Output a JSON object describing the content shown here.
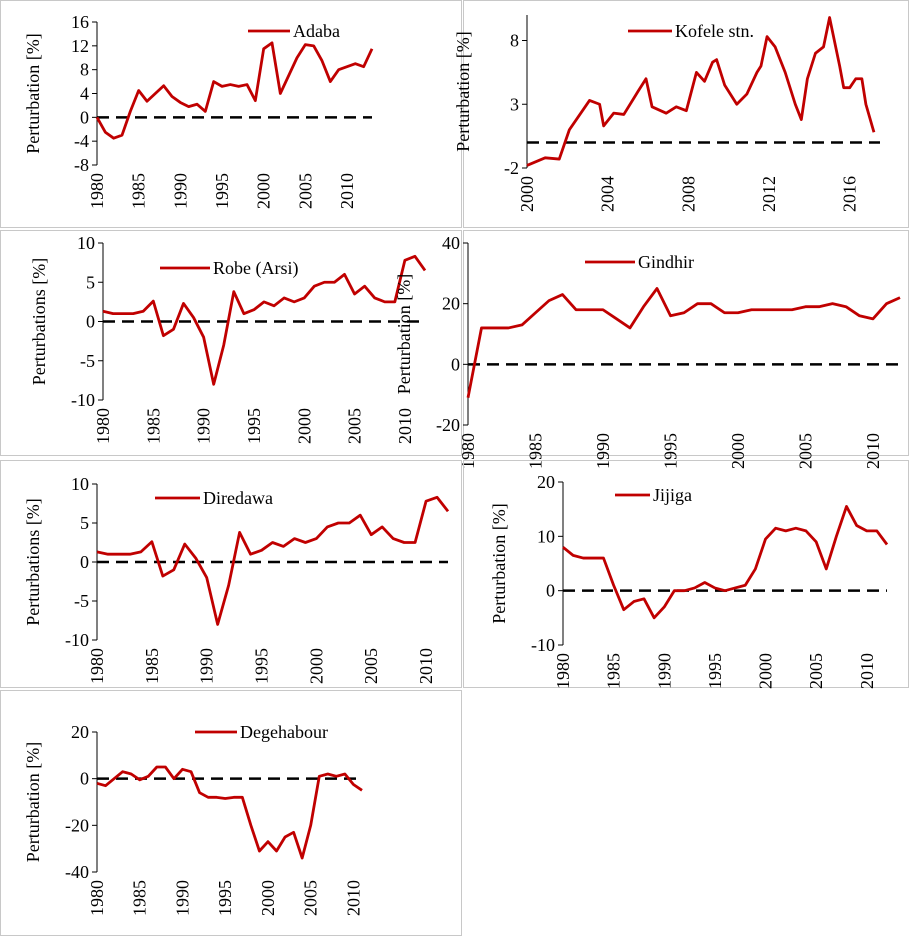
{
  "chart_data": [
    {
      "type": "line",
      "ylabel": "Perturbation [%]",
      "x": [
        1980,
        1981,
        1982,
        1983,
        1984,
        1985,
        1986,
        1987,
        1988,
        1989,
        1990,
        1991,
        1992,
        1993,
        1994,
        1995,
        1996,
        1997,
        1998,
        1999,
        2000,
        2001,
        2002,
        2003,
        2004,
        2005,
        2006,
        2007,
        2008,
        2009,
        2010,
        2011,
        2012,
        2013
      ],
      "series": [
        {
          "name": "Adaba",
          "color": "#c00000",
          "values": [
            0,
            -2.5,
            -3.5,
            -3,
            1,
            4.5,
            2.7,
            4,
            5.3,
            3.5,
            2.5,
            1.8,
            2.2,
            1,
            6,
            5.2,
            5.5,
            5.2,
            5.5,
            2.8,
            11.5,
            12.5,
            4,
            7,
            10,
            12.2,
            12,
            9.5,
            6,
            8,
            8.5,
            9,
            8.5,
            11.5
          ]
        }
      ],
      "xlim": [
        1980,
        2013
      ],
      "ylim": [
        -8,
        16
      ],
      "xticks": [
        1980,
        1985,
        1990,
        1995,
        2000,
        2005,
        2010
      ],
      "yticks": [
        -8,
        -4,
        0,
        4,
        8,
        12,
        16
      ],
      "zero_line": true
    },
    {
      "type": "line",
      "ylabel": "Perturbation [%]",
      "x": [
        2000,
        2000.9,
        2001.6,
        2002.1,
        2003.1,
        2003.6,
        2003.8,
        2004.3,
        2004.8,
        2005.5,
        2005.9,
        2006.2,
        2006.9,
        2007.4,
        2007.9,
        2008.4,
        2008.8,
        2009.2,
        2009.4,
        2009.8,
        2010.4,
        2010.9,
        2011.4,
        2011.6,
        2011.9,
        2012.3,
        2012.8,
        2013.3,
        2013.6,
        2013.9,
        2014.3,
        2014.7,
        2015,
        2015.5,
        2015.7,
        2016,
        2016.3,
        2016.6,
        2016.8,
        2017.2
      ],
      "series": [
        {
          "name": "Kofele stn.",
          "color": "#c00000",
          "values": [
            -1.8,
            -1.2,
            -1.3,
            1,
            3.3,
            3,
            1.3,
            2.3,
            2.2,
            4,
            5,
            2.8,
            2.3,
            2.8,
            2.5,
            5.5,
            4.8,
            6.3,
            6.5,
            4.5,
            3,
            3.8,
            5.5,
            6,
            8.3,
            7.5,
            5.5,
            3,
            1.8,
            5,
            7,
            7.5,
            9.8,
            6,
            4.3,
            4.3,
            5,
            5,
            3,
            0.8
          ]
        }
      ],
      "xlim": [
        2000,
        2017.5
      ],
      "ylim": [
        -2,
        10
      ],
      "xticks": [
        2000,
        2004,
        2008,
        2012,
        2016
      ],
      "yticks": [
        -2,
        3,
        8
      ],
      "zero_line": true
    },
    {
      "type": "line",
      "ylabel": "Perturbations [%]",
      "x": [
        1980,
        1981,
        1982,
        1983,
        1984,
        1985,
        1986,
        1987,
        1988,
        1989,
        1990,
        1991,
        1992,
        1993,
        1994,
        1995,
        1996,
        1997,
        1998,
        1999,
        2000,
        2001,
        2002,
        2003,
        2004,
        2005,
        2006,
        2007,
        2008,
        2009,
        2010,
        2011,
        2012
      ],
      "series": [
        {
          "name": "Robe (Arsi)",
          "color": "#c00000",
          "values": [
            1.3,
            1,
            1,
            1,
            1.3,
            2.6,
            -1.8,
            -1,
            2.3,
            0.5,
            -2,
            -8,
            -3,
            3.8,
            1,
            1.5,
            2.5,
            2,
            3,
            2.5,
            3,
            4.5,
            5,
            5,
            6,
            3.5,
            4.5,
            3,
            2.5,
            2.5,
            7.8,
            8.3,
            6.5
          ]
        }
      ],
      "xlim": [
        1980,
        2012
      ],
      "ylim": [
        -10,
        10
      ],
      "xticks": [
        1980,
        1985,
        1990,
        1995,
        2000,
        2005,
        2010
      ],
      "yticks": [
        -10,
        -5,
        0,
        5,
        10
      ],
      "zero_line": true
    },
    {
      "type": "line",
      "ylabel": "Perturbation [%]",
      "x": [
        1980,
        1981,
        1982,
        1983,
        1984,
        1985,
        1986,
        1987,
        1988,
        1989,
        1990,
        1991,
        1992,
        1993,
        1994,
        1995,
        1996,
        1997,
        1998,
        1999,
        2000,
        2001,
        2002,
        2003,
        2004,
        2005,
        2006,
        2007,
        2008,
        2009,
        2010,
        2011,
        2012
      ],
      "series": [
        {
          "name": "Gindhir",
          "color": "#c00000",
          "values": [
            -11,
            12,
            12,
            12,
            13,
            17,
            21,
            23,
            18,
            18,
            18,
            15,
            12,
            19,
            25,
            16,
            17,
            20,
            20,
            17,
            17,
            18,
            18,
            18,
            18,
            19,
            19,
            20,
            19,
            16,
            15,
            20,
            22
          ]
        }
      ],
      "xlim": [
        1980,
        2012
      ],
      "ylim": [
        -20,
        40
      ],
      "xticks": [
        1980,
        1985,
        1990,
        1995,
        2000,
        2005,
        2010
      ],
      "yticks": [
        -20,
        0,
        20,
        40
      ],
      "zero_line": true
    },
    {
      "type": "line",
      "ylabel": "Perturbations [%]",
      "x": [
        1980,
        1981,
        1982,
        1983,
        1984,
        1985,
        1986,
        1987,
        1988,
        1989,
        1990,
        1991,
        1992,
        1993,
        1994,
        1995,
        1996,
        1997,
        1998,
        1999,
        2000,
        2001,
        2002,
        2003,
        2004,
        2005,
        2006,
        2007,
        2008,
        2009,
        2010,
        2011,
        2012
      ],
      "series": [
        {
          "name": "Diredawa",
          "color": "#c00000",
          "values": [
            1.3,
            1,
            1,
            1,
            1.3,
            2.6,
            -1.8,
            -1,
            2.3,
            0.5,
            -2,
            -8,
            -3,
            3.8,
            1,
            1.5,
            2.5,
            2,
            3,
            2.5,
            3,
            4.5,
            5,
            5,
            6,
            3.5,
            4.5,
            3,
            2.5,
            2.5,
            7.8,
            8.3,
            6.5
          ]
        }
      ],
      "xlim": [
        1980,
        2012
      ],
      "ylim": [
        -10,
        10
      ],
      "xticks": [
        1980,
        1985,
        1990,
        1995,
        2000,
        2005,
        2010
      ],
      "yticks": [
        -10,
        -5,
        0,
        5,
        10
      ],
      "zero_line": true
    },
    {
      "type": "line",
      "ylabel": "Perturbation [%]",
      "x": [
        1980,
        1981,
        1982,
        1983,
        1984,
        1985,
        1986,
        1987,
        1988,
        1989,
        1990,
        1991,
        1992,
        1993,
        1994,
        1995,
        1996,
        1997,
        1998,
        1999,
        2000,
        2001,
        2002,
        2003,
        2004,
        2005,
        2006,
        2007,
        2008,
        2009,
        2010,
        2011,
        2012
      ],
      "series": [
        {
          "name": "Jijiga",
          "color": "#c00000",
          "values": [
            8,
            6.5,
            6,
            6,
            6,
            1,
            -3.5,
            -2,
            -1.5,
            -5,
            -3,
            0,
            0,
            0.5,
            1.5,
            0.5,
            0,
            0.5,
            1,
            4,
            9.5,
            11.5,
            11,
            11.5,
            11,
            9,
            4,
            10,
            15.5,
            12,
            11,
            11,
            8.5
          ]
        }
      ],
      "xlim": [
        1980,
        2012
      ],
      "ylim": [
        -10,
        20
      ],
      "xticks": [
        1980,
        1985,
        1990,
        1995,
        2000,
        2005,
        2010
      ],
      "yticks": [
        -10,
        0,
        10,
        20
      ],
      "zero_line": true
    },
    {
      "type": "line",
      "ylabel": "Perturbation [%]",
      "x": [
        1980,
        1981,
        1982,
        1983,
        1984,
        1985,
        1986,
        1987,
        1988,
        1989,
        1990,
        1991,
        1992,
        1993,
        1994,
        1995,
        1996,
        1997,
        1998,
        1999,
        2000,
        2001,
        2002,
        2003,
        2004,
        2005,
        2006,
        2007,
        2008,
        2009,
        2010,
        2011
      ],
      "series": [
        {
          "name": "Degehabour",
          "color": "#c00000",
          "values": [
            -2,
            -3,
            0,
            3,
            2,
            -0.5,
            1,
            5,
            5,
            0,
            4,
            3,
            -6,
            -8,
            -8,
            -8.5,
            -8,
            -8,
            -20,
            -31,
            -27,
            -31,
            -25,
            -23,
            -34,
            -20,
            1,
            2,
            1,
            2,
            -2.5,
            -5
          ]
        }
      ],
      "xlim": [
        1980,
        2011
      ],
      "ylim": [
        -40,
        20
      ],
      "xticks": [
        1980,
        1985,
        1990,
        1995,
        2000,
        2005,
        2010
      ],
      "yticks": [
        -40,
        -20,
        0,
        20
      ],
      "zero_line": true
    }
  ]
}
